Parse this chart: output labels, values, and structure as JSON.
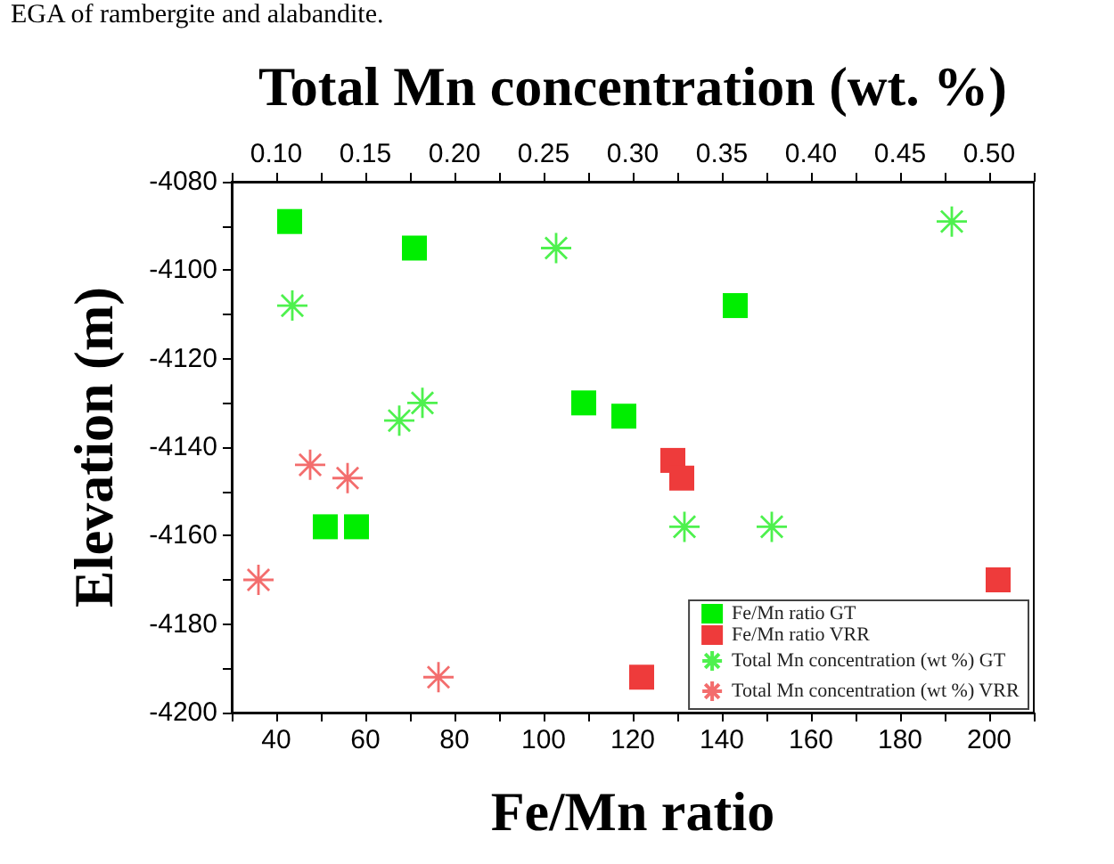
{
  "chart_data": {
    "type": "scatter",
    "xlabel": "Fe/Mn ratio",
    "x2label": "Total Mn concentration (wt. %)",
    "ylabel": "Elevation (m)",
    "annotations": [
      "EGA of rambergite and alabandite."
    ],
    "xlim": [
      30,
      210
    ],
    "xticks": [
      {
        "value": 30,
        "label": null
      },
      40,
      {
        "value": 50,
        "label": null
      },
      60,
      {
        "value": 70,
        "label": null
      },
      80,
      {
        "value": 90,
        "label": null
      },
      100,
      {
        "value": 110,
        "label": null
      },
      120,
      {
        "value": 130,
        "label": null
      },
      140,
      {
        "value": 150,
        "label": null
      },
      160,
      {
        "value": 170,
        "label": null
      },
      180,
      {
        "value": 190,
        "label": null
      },
      200,
      {
        "value": 210,
        "label": null
      }
    ],
    "x2lim": [
      0.075,
      0.525
    ],
    "x2ticks": [
      {
        "value": 0.075,
        "label": null
      },
      {
        "value": 0.1,
        "label": "0.10"
      },
      {
        "value": 0.125,
        "label": null
      },
      {
        "value": 0.15,
        "label": "0.15"
      },
      {
        "value": 0.175,
        "label": null
      },
      {
        "value": 0.2,
        "label": "0.20"
      },
      {
        "value": 0.225,
        "label": null
      },
      {
        "value": 0.25,
        "label": "0.25"
      },
      {
        "value": 0.275,
        "label": null
      },
      {
        "value": 0.3,
        "label": "0.30"
      },
      {
        "value": 0.325,
        "label": null
      },
      {
        "value": 0.35,
        "label": "0.35"
      },
      {
        "value": 0.375,
        "label": null
      },
      {
        "value": 0.4,
        "label": "0.40"
      },
      {
        "value": 0.425,
        "label": null
      },
      {
        "value": 0.45,
        "label": "0.45"
      },
      {
        "value": 0.475,
        "label": null
      },
      {
        "value": 0.5,
        "label": "0.50"
      },
      {
        "value": 0.525,
        "label": null
      }
    ],
    "ylim": [
      -4200,
      -4080
    ],
    "yticks": [
      -4200,
      {
        "value": -4190,
        "label": null
      },
      -4180,
      {
        "value": -4170,
        "label": null
      },
      -4160,
      {
        "value": -4150,
        "label": null
      },
      -4140,
      {
        "value": -4130,
        "label": null
      },
      -4120,
      {
        "value": -4110,
        "label": null
      },
      -4100,
      {
        "value": -4090,
        "label": null
      },
      -4080
    ],
    "grid": false,
    "legend": "bottom right",
    "series": [
      {
        "name": "Fe/Mn ratio GT",
        "color": "#00ee00",
        "marker": "square",
        "x": [
          43,
          71,
          51,
          58,
          109,
          118,
          143
        ],
        "values": [
          -4089,
          -4095,
          -4158,
          -4158,
          -4130,
          -4133,
          -4108
        ]
      },
      {
        "name": "Fe/Mn ratio VRR",
        "color": "#ee3b3b",
        "marker": "square",
        "x": [
          129,
          131,
          202,
          122
        ],
        "values": [
          -4143,
          -4147,
          -4170,
          -4192
        ]
      },
      {
        "name": "Total Mn concentration (wt %) GT",
        "color": "#22ee22",
        "marker": "cross",
        "axis": "x2",
        "x": [
          0.109,
          0.169,
          0.182,
          0.257,
          0.329,
          0.378,
          0.479
        ],
        "values": [
          -4108,
          -4134,
          -4130,
          -4095,
          -4158,
          -4158,
          -4089
        ]
      },
      {
        "name": "Total Mn concentration (wt %) VRR",
        "color": "#f04848",
        "marker": "cross",
        "axis": "x2",
        "x": [
          0.119,
          0.14,
          0.09,
          0.191
        ],
        "values": [
          -4144,
          -4147,
          -4170,
          -4192
        ]
      }
    ]
  }
}
